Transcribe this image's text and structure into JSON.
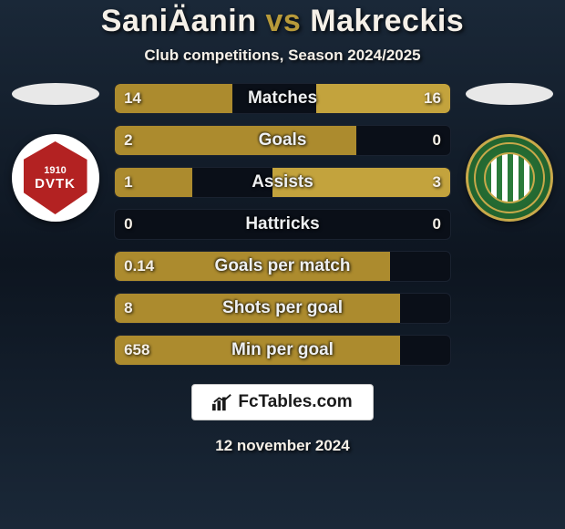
{
  "title": {
    "player1": "SaniÄanin",
    "vs": "vs",
    "player2": "Makreckis",
    "accent_color": "#b89a3a",
    "text_color": "#f5f0e8",
    "fontsize": 34
  },
  "subtitle": "Club competitions, Season 2024/2025",
  "clubs": {
    "left": {
      "year": "1910",
      "letters": "DVTK",
      "bg": "#ffffff",
      "shield": "#b32222"
    },
    "right": {
      "ring": "#c9a94a",
      "bg": "#2a7a3a"
    }
  },
  "bar_style": {
    "left_color": "#ac8b2e",
    "right_color": "#c3a33d",
    "track_color": "#0a0f18",
    "height": 34,
    "radius": 6,
    "label_fontsize": 19,
    "value_fontsize": 17
  },
  "stats": [
    {
      "label": "Matches",
      "left_val": "14",
      "right_val": "16",
      "left_pct": 35,
      "right_pct": 40
    },
    {
      "label": "Goals",
      "left_val": "2",
      "right_val": "0",
      "left_pct": 72,
      "right_pct": 0
    },
    {
      "label": "Assists",
      "left_val": "1",
      "right_val": "3",
      "left_pct": 23,
      "right_pct": 53
    },
    {
      "label": "Hattricks",
      "left_val": "0",
      "right_val": "0",
      "left_pct": 0,
      "right_pct": 0
    },
    {
      "label": "Goals per match",
      "left_val": "0.14",
      "right_val": "",
      "left_pct": 82,
      "right_pct": 0
    },
    {
      "label": "Shots per goal",
      "left_val": "8",
      "right_val": "",
      "left_pct": 85,
      "right_pct": 0
    },
    {
      "label": "Min per goal",
      "left_val": "658",
      "right_val": "",
      "left_pct": 85,
      "right_pct": 0
    }
  ],
  "brand": "FcTables.com",
  "date": "12 november 2024"
}
